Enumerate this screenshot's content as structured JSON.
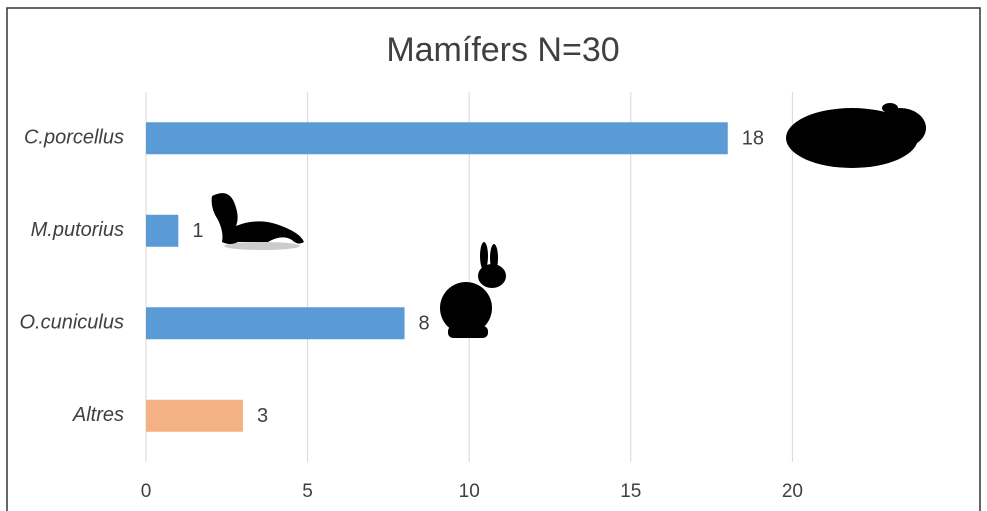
{
  "chart_data": {
    "type": "bar",
    "orientation": "horizontal",
    "title": "Mamífers N=30",
    "categories": [
      "C.porcellus",
      "M.putorius",
      "O.cuniculus",
      "Altres"
    ],
    "values": [
      18,
      1,
      8,
      3
    ],
    "colors": [
      "#5b9bd5",
      "#5b9bd5",
      "#5b9bd5",
      "#f4b183"
    ],
    "xlim": [
      0,
      25
    ],
    "xticks": [
      0,
      5,
      10,
      15,
      20
    ],
    "grid": true
  }
}
